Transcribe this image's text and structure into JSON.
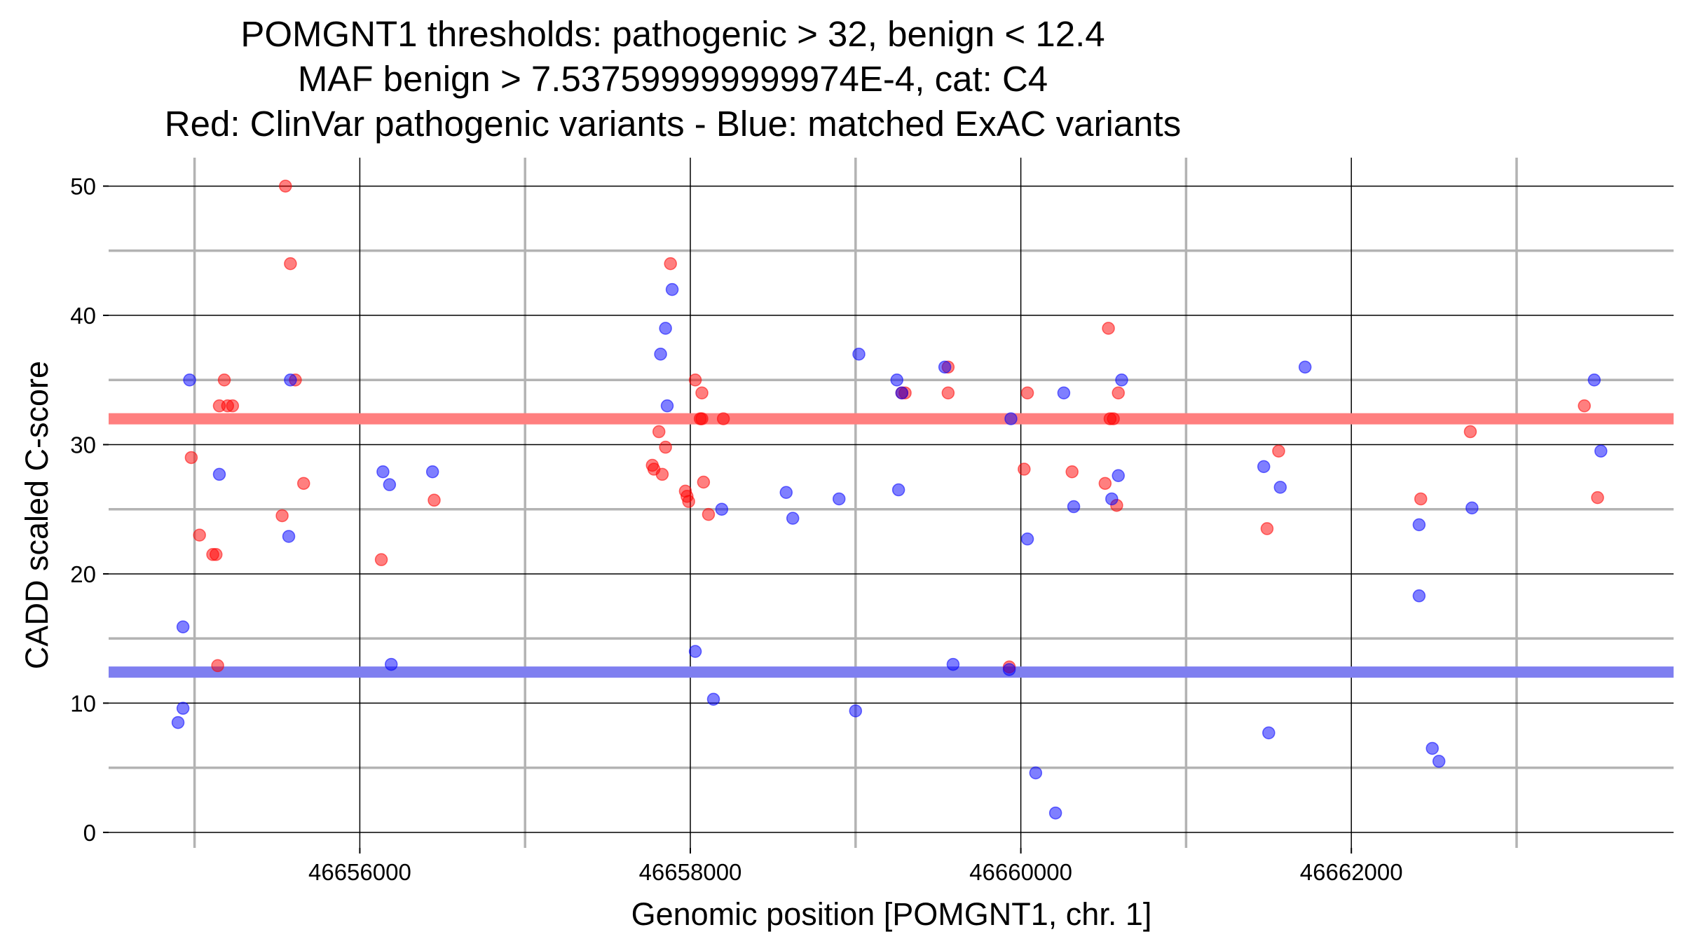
{
  "chart_data": {
    "type": "scatter",
    "title_lines": [
      "POMGNT1 thresholds: pathogenic > 32, benign < 12.4",
      "MAF benign > 7.537599999999974E-4, cat: C4",
      "Red: ClinVar pathogenic variants - Blue: matched ExAC variants"
    ],
    "xlabel": "Genomic position [POMGNT1, chr. 1]",
    "ylabel": "CADD scaled C-score",
    "xlim": [
      46654480,
      46663950
    ],
    "ylim": [
      -1.2,
      52.2
    ],
    "x_ticks": [
      46656000,
      46658000,
      46660000,
      46662000
    ],
    "x_tick_labels": [
      "46656000",
      "46658000",
      "46660000",
      "46662000"
    ],
    "y_ticks": [
      0,
      10,
      20,
      30,
      40,
      50
    ],
    "y_tick_labels": [
      "0",
      "10",
      "20",
      "30",
      "40",
      "50"
    ],
    "x_minor_grid": [
      46655000,
      46657000,
      46659000,
      46661000,
      46663000
    ],
    "y_minor_grid": [
      5,
      15,
      25,
      35,
      45
    ],
    "grid": true,
    "thresholds": [
      {
        "name": "pathogenic",
        "value": 32,
        "color": "#ff7f7f"
      },
      {
        "name": "benign",
        "value": 12.4,
        "color": "#7f7ff0"
      }
    ],
    "series": [
      {
        "color": "#ff0000",
        "points": [
          [
            46654980,
            29.0
          ],
          [
            46655030,
            23.0
          ],
          [
            46655110,
            21.5
          ],
          [
            46655130,
            21.5
          ],
          [
            46655140,
            12.9
          ],
          [
            46655150,
            33.0
          ],
          [
            46655180,
            35.0
          ],
          [
            46655200,
            33.0
          ],
          [
            46655230,
            33.0
          ],
          [
            46655530,
            24.5
          ],
          [
            46655550,
            50.0
          ],
          [
            46655580,
            44.0
          ],
          [
            46655610,
            35.0
          ],
          [
            46655660,
            27.0
          ],
          [
            46656130,
            21.1
          ],
          [
            46656450,
            25.7
          ],
          [
            46657770,
            28.4
          ],
          [
            46657780,
            28.1
          ],
          [
            46657810,
            31.0
          ],
          [
            46657830,
            27.7
          ],
          [
            46657850,
            29.8
          ],
          [
            46657880,
            44.0
          ],
          [
            46657970,
            26.4
          ],
          [
            46657980,
            26.0
          ],
          [
            46657990,
            25.6
          ],
          [
            46658030,
            35.0
          ],
          [
            46658060,
            32.0
          ],
          [
            46658070,
            32.0
          ],
          [
            46658070,
            34.0
          ],
          [
            46658080,
            27.1
          ],
          [
            46658110,
            24.6
          ],
          [
            46658200,
            32.0
          ],
          [
            46659280,
            34.0
          ],
          [
            46659300,
            34.0
          ],
          [
            46659560,
            36.0
          ],
          [
            46659560,
            34.0
          ],
          [
            46659930,
            12.8
          ],
          [
            46660020,
            28.1
          ],
          [
            46660040,
            34.0
          ],
          [
            46660310,
            27.9
          ],
          [
            46660510,
            27.0
          ],
          [
            46660530,
            39.0
          ],
          [
            46660540,
            32.0
          ],
          [
            46660560,
            32.0
          ],
          [
            46660580,
            25.3
          ],
          [
            46660590,
            34.0
          ],
          [
            46661490,
            23.5
          ],
          [
            46661560,
            29.5
          ],
          [
            46662420,
            25.8
          ],
          [
            46662720,
            31.0
          ],
          [
            46663410,
            33.0
          ],
          [
            46663490,
            25.9
          ]
        ]
      },
      {
        "color": "#0000ff",
        "points": [
          [
            46654900,
            8.5
          ],
          [
            46654930,
            9.6
          ],
          [
            46654930,
            15.9
          ],
          [
            46654970,
            35.0
          ],
          [
            46655150,
            27.7
          ],
          [
            46655570,
            22.9
          ],
          [
            46655580,
            35.0
          ],
          [
            46656140,
            27.9
          ],
          [
            46656180,
            26.9
          ],
          [
            46656190,
            13.0
          ],
          [
            46656440,
            27.9
          ],
          [
            46657820,
            37.0
          ],
          [
            46657850,
            39.0
          ],
          [
            46657860,
            33.0
          ],
          [
            46657890,
            42.0
          ],
          [
            46658030,
            14.0
          ],
          [
            46658140,
            10.3
          ],
          [
            46658190,
            25.0
          ],
          [
            46658580,
            26.3
          ],
          [
            46658620,
            24.3
          ],
          [
            46658900,
            25.8
          ],
          [
            46659000,
            9.4
          ],
          [
            46659020,
            37.0
          ],
          [
            46659250,
            35.0
          ],
          [
            46659260,
            26.5
          ],
          [
            46659280,
            34.0
          ],
          [
            46659540,
            36.0
          ],
          [
            46659590,
            13.0
          ],
          [
            46659930,
            12.6
          ],
          [
            46659940,
            32.0
          ],
          [
            46660040,
            22.7
          ],
          [
            46660090,
            4.6
          ],
          [
            46660210,
            1.5
          ],
          [
            46660260,
            34.0
          ],
          [
            46660320,
            25.2
          ],
          [
            46660550,
            25.8
          ],
          [
            46660590,
            27.6
          ],
          [
            46660610,
            35.0
          ],
          [
            46661470,
            28.3
          ],
          [
            46661500,
            7.7
          ],
          [
            46661570,
            26.7
          ],
          [
            46661720,
            36.0
          ],
          [
            46662410,
            23.8
          ],
          [
            46662410,
            18.3
          ],
          [
            46662490,
            6.5
          ],
          [
            46662530,
            5.5
          ],
          [
            46662730,
            25.1
          ],
          [
            46663470,
            35.0
          ],
          [
            46663510,
            29.5
          ]
        ]
      }
    ]
  }
}
